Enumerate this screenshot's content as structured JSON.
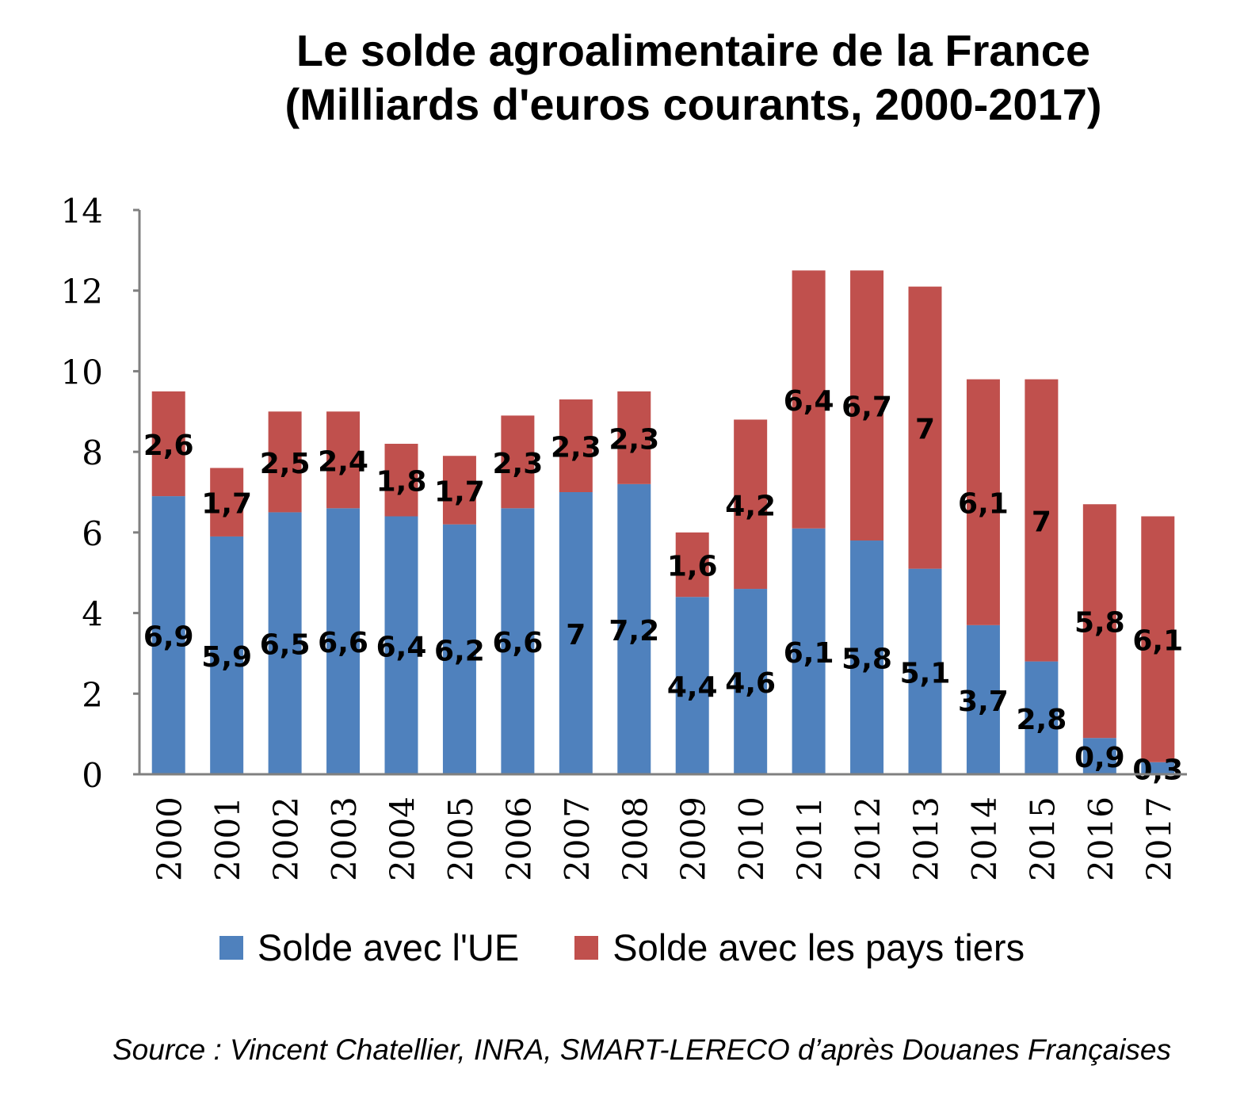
{
  "title_line1": "Le solde agroalimentaire de la France",
  "title_line2": "(Milliards d'euros courants, 2000-2017)",
  "source": "Source : Vincent Chatellier, INRA, SMART-LERECO d’après Douanes Françaises",
  "colors": {
    "ue": "#4f81bd",
    "tiers": "#c0504d",
    "axis": "#808080"
  },
  "chart_data": {
    "type": "bar",
    "stacked": true,
    "title": "Le solde agroalimentaire de la France (Milliards d'euros courants, 2000-2017)",
    "xlabel": "",
    "ylabel": "",
    "ylim": [
      0,
      14
    ],
    "yticks": [
      0,
      2,
      4,
      6,
      8,
      10,
      12,
      14
    ],
    "categories": [
      "2000",
      "2001",
      "2002",
      "2003",
      "2004",
      "2005",
      "2006",
      "2007",
      "2008",
      "2009",
      "2010",
      "2011",
      "2012",
      "2013",
      "2014",
      "2015",
      "2016",
      "2017"
    ],
    "series": [
      {
        "name": "Solde avec l'UE",
        "values": [
          6.9,
          5.9,
          6.5,
          6.6,
          6.4,
          6.2,
          6.6,
          7.0,
          7.2,
          4.4,
          4.6,
          6.1,
          5.8,
          5.1,
          3.7,
          2.8,
          0.9,
          0.3
        ],
        "labels": [
          "6,9",
          "5,9",
          "6,5",
          "6,6",
          "6,4",
          "6,2",
          "6,6",
          "7",
          "7,2",
          "4,4",
          "4,6",
          "6,1",
          "5,8",
          "5,1",
          "3,7",
          "2,8",
          "0,9",
          "0,3"
        ]
      },
      {
        "name": "Solde avec les pays tiers",
        "values": [
          2.6,
          1.7,
          2.5,
          2.4,
          1.8,
          1.7,
          2.3,
          2.3,
          2.3,
          1.6,
          4.2,
          6.4,
          6.7,
          7.0,
          6.1,
          7.0,
          5.8,
          6.1
        ],
        "labels": [
          "2,6",
          "1,7",
          "2,5",
          "2,4",
          "1,8",
          "1,7",
          "2,3",
          "2,3",
          "2,3",
          "1,6",
          "4,2",
          "6,4",
          "6,7",
          "7",
          "6,1",
          "7",
          "5,8",
          "6,1"
        ]
      }
    ],
    "legend_position": "bottom"
  }
}
